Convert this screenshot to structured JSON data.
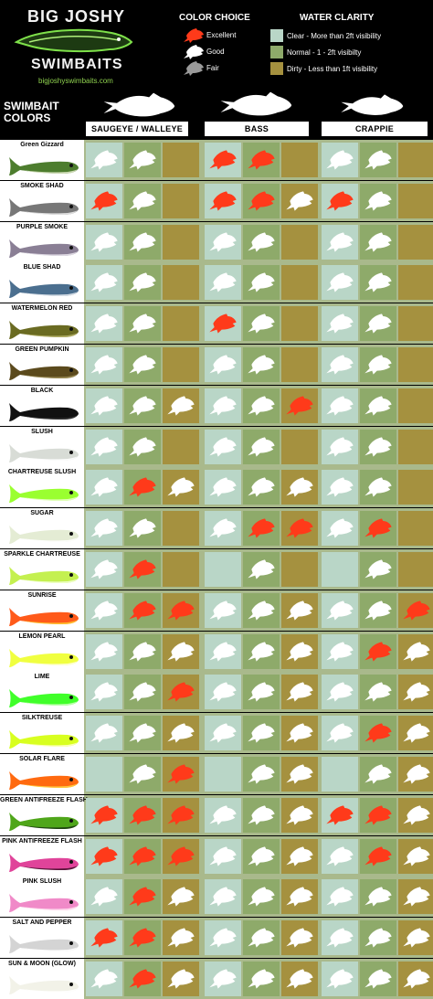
{
  "brand": {
    "line1": "BIG JOSHY",
    "line2": "SWIMBAITS",
    "url": "bigjoshyswimbaits.com"
  },
  "legend": {
    "color_choice_title": "COLOR CHOICE",
    "excellent": "Excellent",
    "good": "Good",
    "fair": "Fair",
    "water_clarity_title": "WATER CLARITY",
    "clear": "Clear - More than 2ft visibility",
    "normal": "Normal - 1 - 2ft visibilty",
    "dirty": "Dirty - Less than 1ft visibility"
  },
  "colors": {
    "excellent": "#ff3a1a",
    "good": "#ffffff",
    "fair": "#9a9a9a",
    "clear": "#b9d6c7",
    "normal": "#8eaa6a",
    "dirty": "#a5913f",
    "row_bg": "#a9b98c"
  },
  "header": {
    "swimbait_colors": "SWIMBAIT\nCOLORS",
    "species": [
      "SAUGEYE / WALLEYE",
      "BASS",
      "CRAPPIE"
    ]
  },
  "chart_data": {
    "type": "table",
    "rating_key": {
      "E": "Excellent",
      "G": "Good",
      "F": "Fair",
      "": "none"
    },
    "water_order": [
      "Clear",
      "Normal",
      "Dirty"
    ],
    "species": [
      "SAUGEYE / WALLEYE",
      "BASS",
      "CRAPPIE"
    ],
    "rows": [
      {
        "name": "Green Gizzard",
        "body": "#4d7d2e",
        "belly": "#d8e2c0",
        "ratings": [
          [
            "G",
            "G",
            ""
          ],
          [
            "E",
            "E",
            ""
          ],
          [
            "G",
            "G",
            ""
          ]
        ]
      },
      {
        "name": "SMOKE SHAD",
        "body": "#777777",
        "belly": "#e8e8e8",
        "ratings": [
          [
            "E",
            "G",
            ""
          ],
          [
            "E",
            "E",
            "G"
          ],
          [
            "E",
            "G",
            ""
          ]
        ]
      },
      {
        "name": "PURPLE SMOKE",
        "body": "#8a7f95",
        "belly": "#e6e2ea",
        "ratings": [
          [
            "G",
            "G",
            ""
          ],
          [
            "G",
            "G",
            ""
          ],
          [
            "G",
            "G",
            ""
          ]
        ]
      },
      {
        "name": "BLUE SHAD",
        "body": "#4b6f8f",
        "belly": "#e4e9ee",
        "ratings": [
          [
            "G",
            "G",
            ""
          ],
          [
            "G",
            "G",
            ""
          ],
          [
            "G",
            "G",
            ""
          ]
        ]
      },
      {
        "name": "WATERMELON RED",
        "body": "#6a6b22",
        "belly": "#b6b26a",
        "ratings": [
          [
            "G",
            "G",
            ""
          ],
          [
            "E",
            "G",
            ""
          ],
          [
            "G",
            "G",
            ""
          ]
        ]
      },
      {
        "name": "GREEN PUMPKIN",
        "body": "#5b4a1d",
        "belly": "#9a8c55",
        "ratings": [
          [
            "G",
            "G",
            ""
          ],
          [
            "G",
            "G",
            ""
          ],
          [
            "G",
            "G",
            ""
          ]
        ]
      },
      {
        "name": "BLACK",
        "body": "#111111",
        "belly": "#333333",
        "ratings": [
          [
            "G",
            "G",
            "G"
          ],
          [
            "G",
            "G",
            "E"
          ],
          [
            "G",
            "G",
            ""
          ]
        ]
      },
      {
        "name": "SLUSH",
        "body": "#d8dcd6",
        "belly": "#ffffff",
        "ratings": [
          [
            "G",
            "G",
            ""
          ],
          [
            "G",
            "G",
            ""
          ],
          [
            "G",
            "G",
            ""
          ]
        ]
      },
      {
        "name": "CHARTREUSE SLUSH",
        "body": "#9aff30",
        "belly": "#e9ffc8",
        "ratings": [
          [
            "G",
            "E",
            "G"
          ],
          [
            "G",
            "G",
            "G"
          ],
          [
            "G",
            "G",
            ""
          ]
        ]
      },
      {
        "name": "SUGAR",
        "body": "#e4ecd4",
        "belly": "#ffffff",
        "ratings": [
          [
            "G",
            "G",
            ""
          ],
          [
            "G",
            "E",
            "E"
          ],
          [
            "G",
            "E",
            ""
          ]
        ]
      },
      {
        "name": "SPARKLE CHARTREUSE",
        "body": "#c4f050",
        "belly": "#f2ffd0",
        "ratings": [
          [
            "G",
            "E",
            ""
          ],
          [
            "",
            "G",
            ""
          ],
          [
            "",
            "G",
            ""
          ]
        ]
      },
      {
        "name": "SUNRISE",
        "body": "#ff5a1a",
        "belly": "#ffc830",
        "ratings": [
          [
            "G",
            "E",
            "E"
          ],
          [
            "G",
            "G",
            "G"
          ],
          [
            "G",
            "G",
            "E"
          ]
        ]
      },
      {
        "name": "LEMON PEARL",
        "body": "#f0ff40",
        "belly": "#ffffe0",
        "ratings": [
          [
            "G",
            "G",
            "G"
          ],
          [
            "G",
            "G",
            "G"
          ],
          [
            "G",
            "E",
            "G"
          ]
        ]
      },
      {
        "name": "LIME",
        "body": "#40ff2a",
        "belly": "#c8ffb8",
        "ratings": [
          [
            "G",
            "G",
            "E"
          ],
          [
            "G",
            "G",
            "G"
          ],
          [
            "G",
            "G",
            "G"
          ]
        ]
      },
      {
        "name": "SILKTREUSE",
        "body": "#d8ff20",
        "belly": "#ffffc8",
        "ratings": [
          [
            "G",
            "G",
            "G"
          ],
          [
            "G",
            "G",
            "G"
          ],
          [
            "G",
            "E",
            "G"
          ]
        ]
      },
      {
        "name": "SOLAR FLARE",
        "body": "#ff6a10",
        "belly": "#ffd040",
        "ratings": [
          [
            "",
            "G",
            "E"
          ],
          [
            "",
            "G",
            "G"
          ],
          [
            "",
            "G",
            "G"
          ]
        ]
      },
      {
        "name": "GREEN ANTIFREEZE FLASH",
        "body": "#4fa61a",
        "belly": "#1a3a10",
        "ratings": [
          [
            "E",
            "E",
            "E"
          ],
          [
            "G",
            "G",
            "G"
          ],
          [
            "E",
            "E",
            "G"
          ]
        ]
      },
      {
        "name": "PINK ANTIFREEZE FLASH",
        "body": "#e0449a",
        "belly": "#4a1030",
        "ratings": [
          [
            "E",
            "E",
            "E"
          ],
          [
            "G",
            "G",
            "G"
          ],
          [
            "G",
            "E",
            "G"
          ]
        ]
      },
      {
        "name": "PINK SLUSH",
        "body": "#f08ac8",
        "belly": "#ffe0f0",
        "ratings": [
          [
            "G",
            "E",
            "G"
          ],
          [
            "G",
            "G",
            "G"
          ],
          [
            "G",
            "G",
            "G"
          ]
        ]
      },
      {
        "name": "SALT AND PEPPER",
        "body": "#d4d4d4",
        "belly": "#ffffff",
        "ratings": [
          [
            "E",
            "E",
            "G"
          ],
          [
            "G",
            "G",
            "G"
          ],
          [
            "G",
            "G",
            "G"
          ]
        ]
      },
      {
        "name": "SUN & MOON (GLOW)",
        "body": "#f2f2e8",
        "belly": "#ffffff",
        "ratings": [
          [
            "G",
            "E",
            "G"
          ],
          [
            "G",
            "G",
            "G"
          ],
          [
            "G",
            "G",
            "G"
          ]
        ]
      }
    ]
  }
}
